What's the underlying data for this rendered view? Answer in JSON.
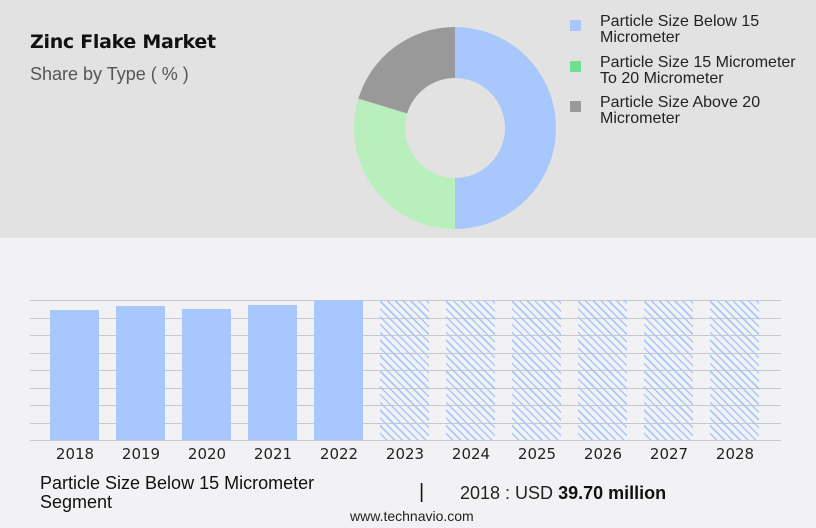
{
  "header": {
    "title": "Zinc Flake Market",
    "subtitle": "Share by Type ( % )"
  },
  "legend": {
    "items": [
      {
        "label": "Particle Size Below 15 Micrometer",
        "color": "#a8c8fd"
      },
      {
        "label": "Particle Size 15 Micrometer To 20 Micrometer",
        "color": "#6ee08e"
      },
      {
        "label": "Particle Size Above 20 Micrometer",
        "color": "#999999"
      }
    ]
  },
  "footer": {
    "segment": "Particle Size Below 15 Micrometer Segment",
    "separator": "|",
    "value_prefix": "2018 : USD ",
    "value_bold": "39.70 million",
    "url": "www.technavio.com"
  },
  "chart_data": [
    {
      "type": "pie",
      "title": "Zinc Flake Market",
      "subtitle": "Share by Type ( % )",
      "donut": true,
      "categories": [
        "Particle Size Below 15 Micrometer",
        "Particle Size 15 Micrometer To 20 Micrometer",
        "Particle Size Above 20 Micrometer"
      ],
      "values": [
        50.0,
        29.7,
        20.3
      ],
      "colors": [
        "#a8c8fd",
        "#b8efbc",
        "#999999"
      ],
      "legend_position": "right"
    },
    {
      "type": "bar",
      "title": "Particle Size Below 15 Micrometer Segment",
      "categories": [
        "2018",
        "2019",
        "2020",
        "2021",
        "2022",
        "2023",
        "2024",
        "2025",
        "2026",
        "2027",
        "2028"
      ],
      "values": [
        39.7,
        40.9,
        40.0,
        41.2,
        42.8,
        null,
        null,
        null,
        null,
        null,
        null
      ],
      "forecast": [
        false,
        false,
        false,
        false,
        false,
        true,
        true,
        true,
        true,
        true,
        true
      ],
      "annotation": "2018 : USD 39.70 million",
      "xlabel": "",
      "ylabel": "",
      "grid": true,
      "yaxis_labels_shown": false,
      "bar_color": "#a8c8fd"
    }
  ]
}
